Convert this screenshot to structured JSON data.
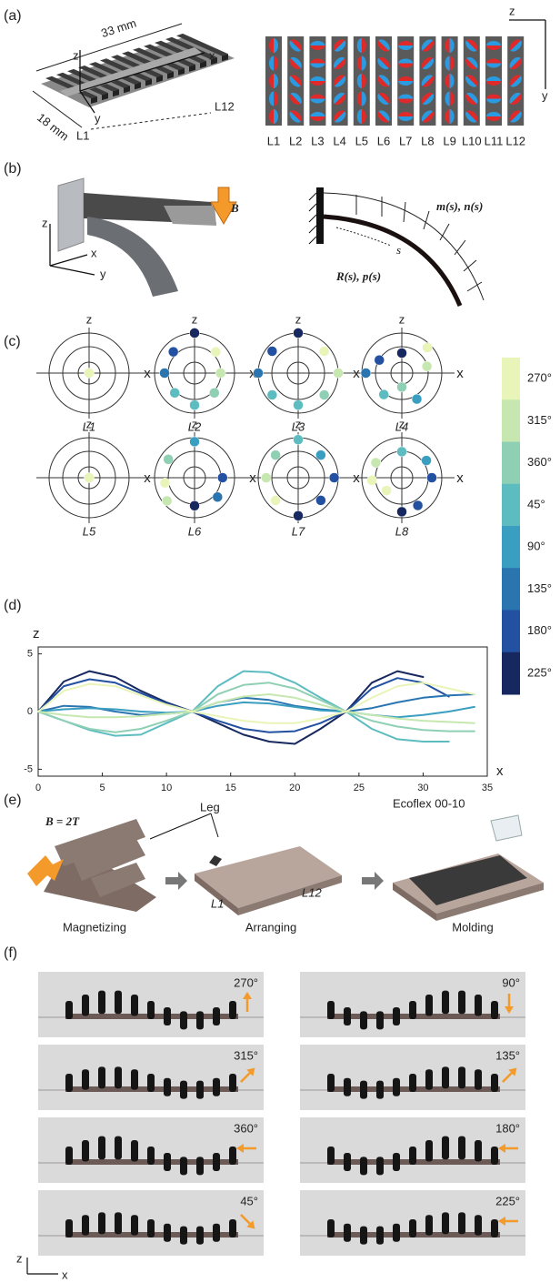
{
  "panel_labels": [
    "(a)",
    "(b)",
    "(c)",
    "(d)",
    "(e)",
    "(f)"
  ],
  "a": {
    "length": "33 mm",
    "width": "18 mm",
    "axes": [
      "z",
      "x",
      "y"
    ],
    "first": "L1",
    "last": "L12",
    "magnet_axes": [
      "z",
      "y"
    ],
    "columns": [
      "L1",
      "L2",
      "L3",
      "L4",
      "L5",
      "L6",
      "L7",
      "L8",
      "L9",
      "L10",
      "L11",
      "L12"
    ]
  },
  "b": {
    "field": "B",
    "axes": [
      "z",
      "x",
      "y"
    ],
    "loads": "m(s), n(s)",
    "position": "R(s), p(s)",
    "arc": "s"
  },
  "c": {
    "axis_z": "z",
    "axis_x": "x",
    "plots": [
      {
        "label": "L1",
        "dots": [
          [
            0,
            0,
            0
          ]
        ]
      },
      {
        "label": "L2",
        "dots": [
          [
            90,
            1,
            7
          ],
          [
            135,
            0.75,
            6
          ],
          [
            45,
            0.75,
            0
          ],
          [
            180,
            0.75,
            5
          ],
          [
            0,
            0.65,
            1
          ],
          [
            225,
            0.7,
            3
          ],
          [
            315,
            0.7,
            2
          ],
          [
            270,
            0.8,
            3
          ]
        ]
      },
      {
        "label": "L3",
        "dots": [
          [
            90,
            1,
            7
          ],
          [
            140,
            0.85,
            6
          ],
          [
            40,
            0.85,
            0
          ],
          [
            180,
            1,
            5
          ],
          [
            0,
            1,
            1
          ],
          [
            220,
            0.85,
            3
          ],
          [
            320,
            0.85,
            2
          ],
          [
            270,
            0.8,
            3
          ]
        ]
      },
      {
        "label": "L4",
        "dots": [
          [
            90,
            0.5,
            7
          ],
          [
            150,
            0.65,
            6
          ],
          [
            45,
            0.9,
            0
          ],
          [
            180,
            0.9,
            5
          ],
          [
            15,
            0.65,
            1
          ],
          [
            230,
            0.7,
            3
          ],
          [
            300,
            0.75,
            4
          ],
          [
            270,
            0.35,
            2
          ]
        ]
      },
      {
        "label": "L5",
        "dots": [
          [
            0,
            0,
            0
          ]
        ]
      },
      {
        "label": "L6",
        "dots": [
          [
            90,
            0.9,
            4
          ],
          [
            145,
            0.8,
            2
          ],
          [
            0,
            0.7,
            6
          ],
          [
            190,
            0.75,
            0
          ],
          [
            220,
            0.9,
            1
          ],
          [
            320,
            0.75,
            5
          ],
          [
            270,
            0.7,
            7
          ]
        ]
      },
      {
        "label": "L7",
        "dots": [
          [
            90,
            0.95,
            3
          ],
          [
            135,
            0.8,
            2
          ],
          [
            45,
            0.8,
            4
          ],
          [
            180,
            0.8,
            1
          ],
          [
            0,
            0.9,
            6
          ],
          [
            225,
            0.8,
            0
          ],
          [
            315,
            0.8,
            6
          ],
          [
            270,
            0.95,
            7
          ]
        ]
      },
      {
        "label": "L8",
        "dots": [
          [
            90,
            0.65,
            3
          ],
          [
            150,
            0.75,
            1
          ],
          [
            35,
            0.75,
            4
          ],
          [
            185,
            0.75,
            0
          ],
          [
            0,
            0.75,
            6
          ],
          [
            220,
            0.5,
            0
          ],
          [
            300,
            0.8,
            6
          ],
          [
            270,
            0.85,
            7
          ]
        ]
      }
    ],
    "colorbar": {
      "labels": [
        "270°",
        "315°",
        "360°",
        "45°",
        "90°",
        "135°",
        "180°",
        "225°"
      ],
      "colors": [
        "#e8f4b8",
        "#c6e8b0",
        "#8fd0b4",
        "#5dbcc0",
        "#3a9ec0",
        "#2a74b0",
        "#2350a0",
        "#16285f"
      ]
    }
  },
  "chart_data": {
    "type": "line",
    "ylabel": "z",
    "xlabel": "x",
    "x": [
      0,
      2,
      4,
      6,
      8,
      10,
      12,
      14,
      16,
      18,
      20,
      22,
      24,
      26,
      28,
      30,
      32,
      34
    ],
    "xlim": [
      0,
      35
    ],
    "ylim": [
      -5.6,
      5.6
    ],
    "xticks": [
      0,
      5,
      10,
      15,
      20,
      25,
      30,
      35
    ],
    "yticks": [
      -5,
      0,
      5
    ],
    "series": [
      {
        "color": "#16285f",
        "values": [
          0,
          2.6,
          3.5,
          3.0,
          1.8,
          0.8,
          0,
          -1.0,
          -2.0,
          -2.6,
          -2.8,
          -1.5,
          0,
          2.5,
          3.5,
          3.0,
          null,
          null
        ]
      },
      {
        "color": "#2350a0",
        "values": [
          0,
          2.2,
          2.8,
          2.5,
          1.6,
          0.7,
          0,
          -0.8,
          -1.5,
          -1.8,
          -1.7,
          -1.0,
          0,
          2.0,
          2.9,
          2.5,
          1.3,
          null
        ]
      },
      {
        "color": "#2a74b0",
        "values": [
          0,
          0.5,
          0.4,
          0,
          -0.3,
          -0.2,
          0,
          0.8,
          1.2,
          1.0,
          0.5,
          0.2,
          0,
          0.3,
          0.8,
          1.2,
          1.4,
          1.5
        ]
      },
      {
        "color": "#3a9ec0",
        "values": [
          0,
          0.2,
          0.3,
          0.2,
          0,
          -0.1,
          0,
          0.5,
          0.8,
          0.7,
          0.4,
          0.1,
          0,
          -0.3,
          -0.5,
          -0.3,
          0,
          0.4
        ]
      },
      {
        "color": "#5dbcc0",
        "values": [
          0,
          -0.8,
          -1.6,
          -2.1,
          -2.0,
          -1.0,
          0,
          2.2,
          3.5,
          3.4,
          2.5,
          1.2,
          0,
          -1.5,
          -2.4,
          -2.6,
          -2.6,
          null
        ]
      },
      {
        "color": "#8fd0b4",
        "values": [
          0,
          -0.8,
          -1.5,
          -1.8,
          -1.5,
          -0.8,
          0,
          1.5,
          2.3,
          2.5,
          2.0,
          1.0,
          0,
          -0.8,
          -1.3,
          -1.6,
          -1.7,
          -1.7
        ]
      },
      {
        "color": "#c6e8b0",
        "values": [
          0,
          -0.3,
          -0.5,
          -0.5,
          -0.4,
          -0.2,
          0,
          0.8,
          1.3,
          1.5,
          1.2,
          0.6,
          0,
          -0.3,
          -0.6,
          -0.8,
          -0.9,
          -1.0
        ]
      },
      {
        "color": "#e8f4b8",
        "values": [
          0,
          1.8,
          2.4,
          2.2,
          1.4,
          0.6,
          0,
          -0.4,
          -0.8,
          -1.0,
          -1.0,
          -0.6,
          0,
          1.2,
          2.2,
          2.5,
          2.0,
          1.5
        ]
      }
    ]
  },
  "e": {
    "field": "B = 2T",
    "leg": "Leg",
    "material": "Ecoflex 00-10",
    "first": "L1",
    "last": "L12",
    "steps": [
      "Magnetizing",
      "Arranging",
      "Molding"
    ]
  },
  "f": {
    "angles": [
      "270°",
      "90°",
      "315°",
      "135°",
      "360°",
      "180°",
      "45°",
      "225°"
    ],
    "axes": [
      "z",
      "x"
    ]
  }
}
